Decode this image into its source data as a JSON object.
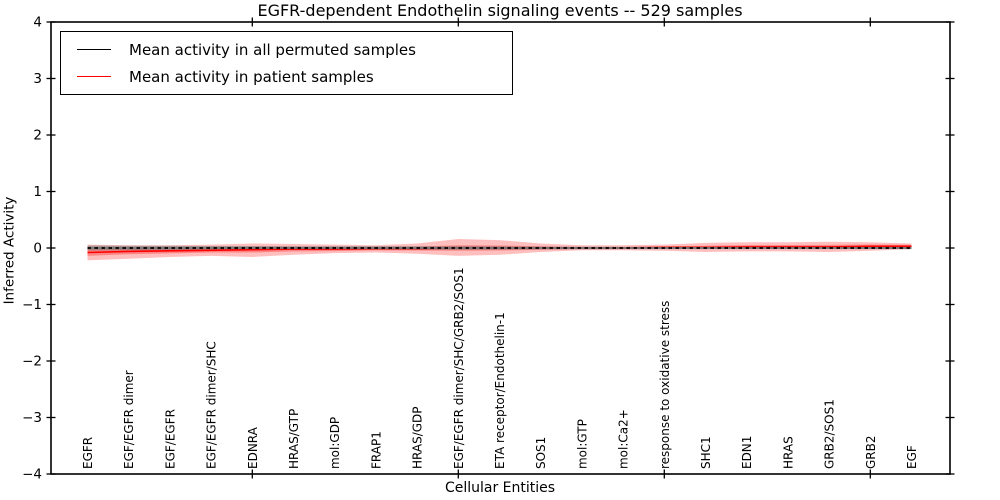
{
  "chart_data": {
    "type": "line",
    "title": "EGFR-dependent Endothelin signaling events -- 529 samples",
    "xlabel": "Cellular Entities",
    "ylabel": "Inferred Activity",
    "ylim": [
      -4,
      4
    ],
    "yticks": [
      4,
      3,
      2,
      1,
      0,
      -1,
      -2,
      -3,
      -4
    ],
    "grid": false,
    "legend_position": "upper left",
    "xtick_category_indices": [
      4,
      9,
      14,
      19
    ],
    "categories": [
      "EGFR",
      "EGF/EGFR dimer",
      "EGF/EGFR",
      "EGF/EGFR dimer/SHC",
      "EDNRA",
      "HRAS/GTP",
      "mol:GDP",
      "FRAP1",
      "HRAS/GDP",
      "EGF/EGFR dimer/SHC/GRB2/SOS1",
      "ETA receptor/Endothelin-1",
      "SOS1",
      "mol:GTP",
      "mol:Ca2+",
      "response to oxidative stress",
      "SHC1",
      "EDN1",
      "HRAS",
      "GRB2/SOS1",
      "GRB2",
      "EGF"
    ],
    "series": [
      {
        "name": "Mean activity in all permuted samples",
        "color": "#000000",
        "line_style": "solid-with-dashes",
        "values": [
          0,
          0,
          0,
          0,
          0,
          0,
          0,
          0,
          0,
          0,
          0,
          0,
          0,
          0,
          0,
          0,
          0,
          0,
          0,
          0,
          0
        ],
        "band_upper": [
          0.045,
          0.04,
          0.04,
          0.035,
          0.035,
          0.03,
          0.03,
          0.03,
          0.03,
          0.03,
          0.028,
          0.025,
          0.022,
          0.02,
          0.02,
          0.02,
          0.02,
          0.02,
          0.02,
          0.02,
          0.02
        ],
        "band_lower": [
          -0.045,
          -0.04,
          -0.04,
          -0.035,
          -0.035,
          -0.03,
          -0.03,
          -0.03,
          -0.03,
          -0.03,
          -0.028,
          -0.025,
          -0.022,
          -0.02,
          -0.02,
          -0.02,
          -0.02,
          -0.02,
          -0.02,
          -0.02,
          -0.02
        ]
      },
      {
        "name": "Mean activity in patient samples",
        "color": "#ff0000",
        "line_style": "solid",
        "values": [
          -0.08,
          -0.06,
          -0.05,
          -0.04,
          -0.03,
          -0.02,
          -0.02,
          -0.01,
          -0.01,
          0,
          0,
          0,
          0,
          0,
          0.01,
          0.01,
          0.02,
          0.02,
          0.02,
          0.03,
          0.03
        ],
        "band_upper": [
          0.06,
          0.05,
          0.05,
          0.06,
          0.08,
          0.07,
          0.06,
          0.05,
          0.08,
          0.16,
          0.14,
          0.08,
          0.05,
          0.05,
          0.06,
          0.09,
          0.1,
          0.1,
          0.11,
          0.1,
          0.08
        ],
        "band_lower": [
          -0.22,
          -0.19,
          -0.16,
          -0.14,
          -0.16,
          -0.12,
          -0.09,
          -0.08,
          -0.1,
          -0.14,
          -0.12,
          -0.07,
          -0.04,
          -0.04,
          -0.05,
          -0.07,
          -0.06,
          -0.06,
          -0.07,
          -0.05,
          -0.02
        ],
        "inner_band_upper": [
          -0.02,
          -0.01,
          -0.005,
          0.0,
          0.02,
          0.02,
          0.015,
          0.02,
          0.025,
          0.05,
          0.045,
          0.03,
          0.02,
          0.02,
          0.032,
          0.04,
          0.052,
          0.053,
          0.055,
          0.062,
          0.055
        ],
        "inner_band_lower": [
          -0.14,
          -0.11,
          -0.095,
          -0.08,
          -0.08,
          -0.06,
          -0.055,
          -0.04,
          -0.045,
          -0.05,
          -0.045,
          -0.03,
          -0.02,
          -0.02,
          -0.012,
          -0.02,
          -0.012,
          -0.013,
          -0.015,
          0.0,
          0.005
        ]
      }
    ]
  }
}
